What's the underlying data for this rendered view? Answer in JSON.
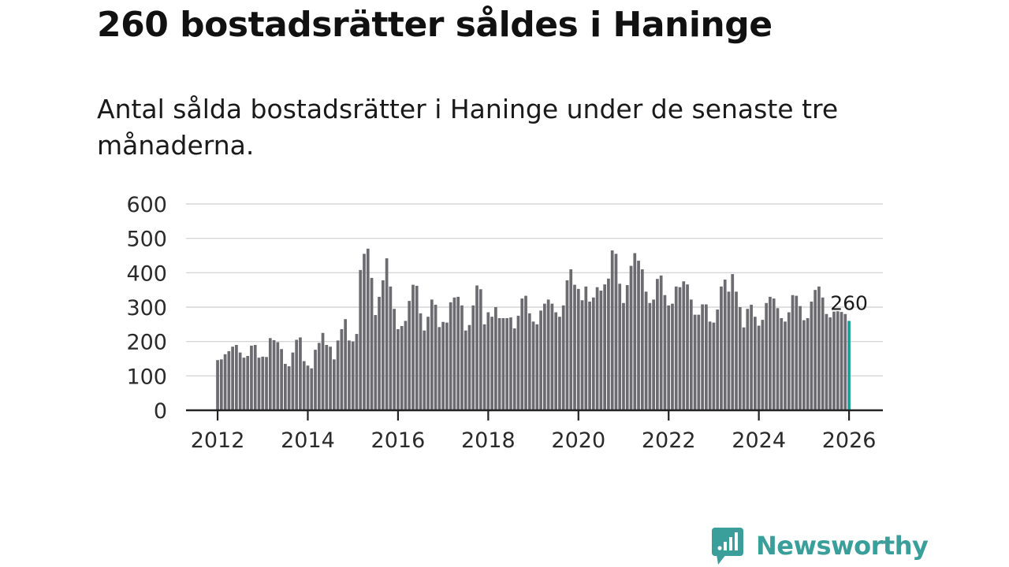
{
  "title": "260 bostadsrätter såldes i Haninge",
  "subtitle": "Antal sålda bostadsrätter i Haninge under de senaste tre månaderna.",
  "brand": {
    "name": "Newsworthy",
    "color": "#3a9e9a"
  },
  "colors": {
    "bar": "#6b6b70",
    "highlight": "#1e9e98",
    "grid": "#d6d6d6",
    "axis": "#222222"
  },
  "chart_data": {
    "type": "bar",
    "x_start": 2012.0,
    "x_step": 0.08333,
    "x_range": [
      2011.3,
      2026.75
    ],
    "ylim": [
      0,
      600
    ],
    "grid": true,
    "y_ticks": [
      "0",
      "100",
      "200",
      "300",
      "400",
      "500",
      "600"
    ],
    "x_ticks": [
      "2012",
      "2014",
      "2016",
      "2018",
      "2020",
      "2022",
      "2024",
      "2026"
    ],
    "values": [
      146,
      148,
      163,
      172,
      185,
      190,
      168,
      153,
      158,
      188,
      190,
      153,
      156,
      155,
      210,
      204,
      198,
      178,
      135,
      128,
      168,
      205,
      212,
      143,
      130,
      122,
      176,
      196,
      225,
      190,
      185,
      148,
      203,
      236,
      265,
      203,
      200,
      222,
      408,
      455,
      470,
      385,
      277,
      330,
      378,
      442,
      360,
      295,
      236,
      245,
      260,
      318,
      365,
      362,
      282,
      232,
      272,
      322,
      307,
      242,
      257,
      255,
      314,
      328,
      330,
      305,
      232,
      248,
      305,
      363,
      352,
      250,
      285,
      272,
      300,
      268,
      268,
      268,
      270,
      238,
      275,
      325,
      333,
      282,
      258,
      250,
      290,
      310,
      322,
      310,
      285,
      272,
      305,
      378,
      410,
      365,
      353,
      320,
      360,
      316,
      328,
      358,
      348,
      366,
      383,
      465,
      455,
      368,
      312,
      364,
      420,
      457,
      435,
      410,
      345,
      312,
      322,
      382,
      392,
      335,
      305,
      310,
      360,
      358,
      375,
      366,
      322,
      278,
      278,
      308,
      308,
      258,
      255,
      293,
      360,
      380,
      345,
      396,
      345,
      300,
      241,
      295,
      307,
      272,
      246,
      263,
      312,
      330,
      325,
      297,
      268,
      258,
      285,
      335,
      333,
      303,
      262,
      268,
      316,
      350,
      360,
      328,
      280,
      270,
      287,
      288,
      286,
      280,
      260
    ],
    "highlight_index": 168,
    "annotation": "260"
  }
}
